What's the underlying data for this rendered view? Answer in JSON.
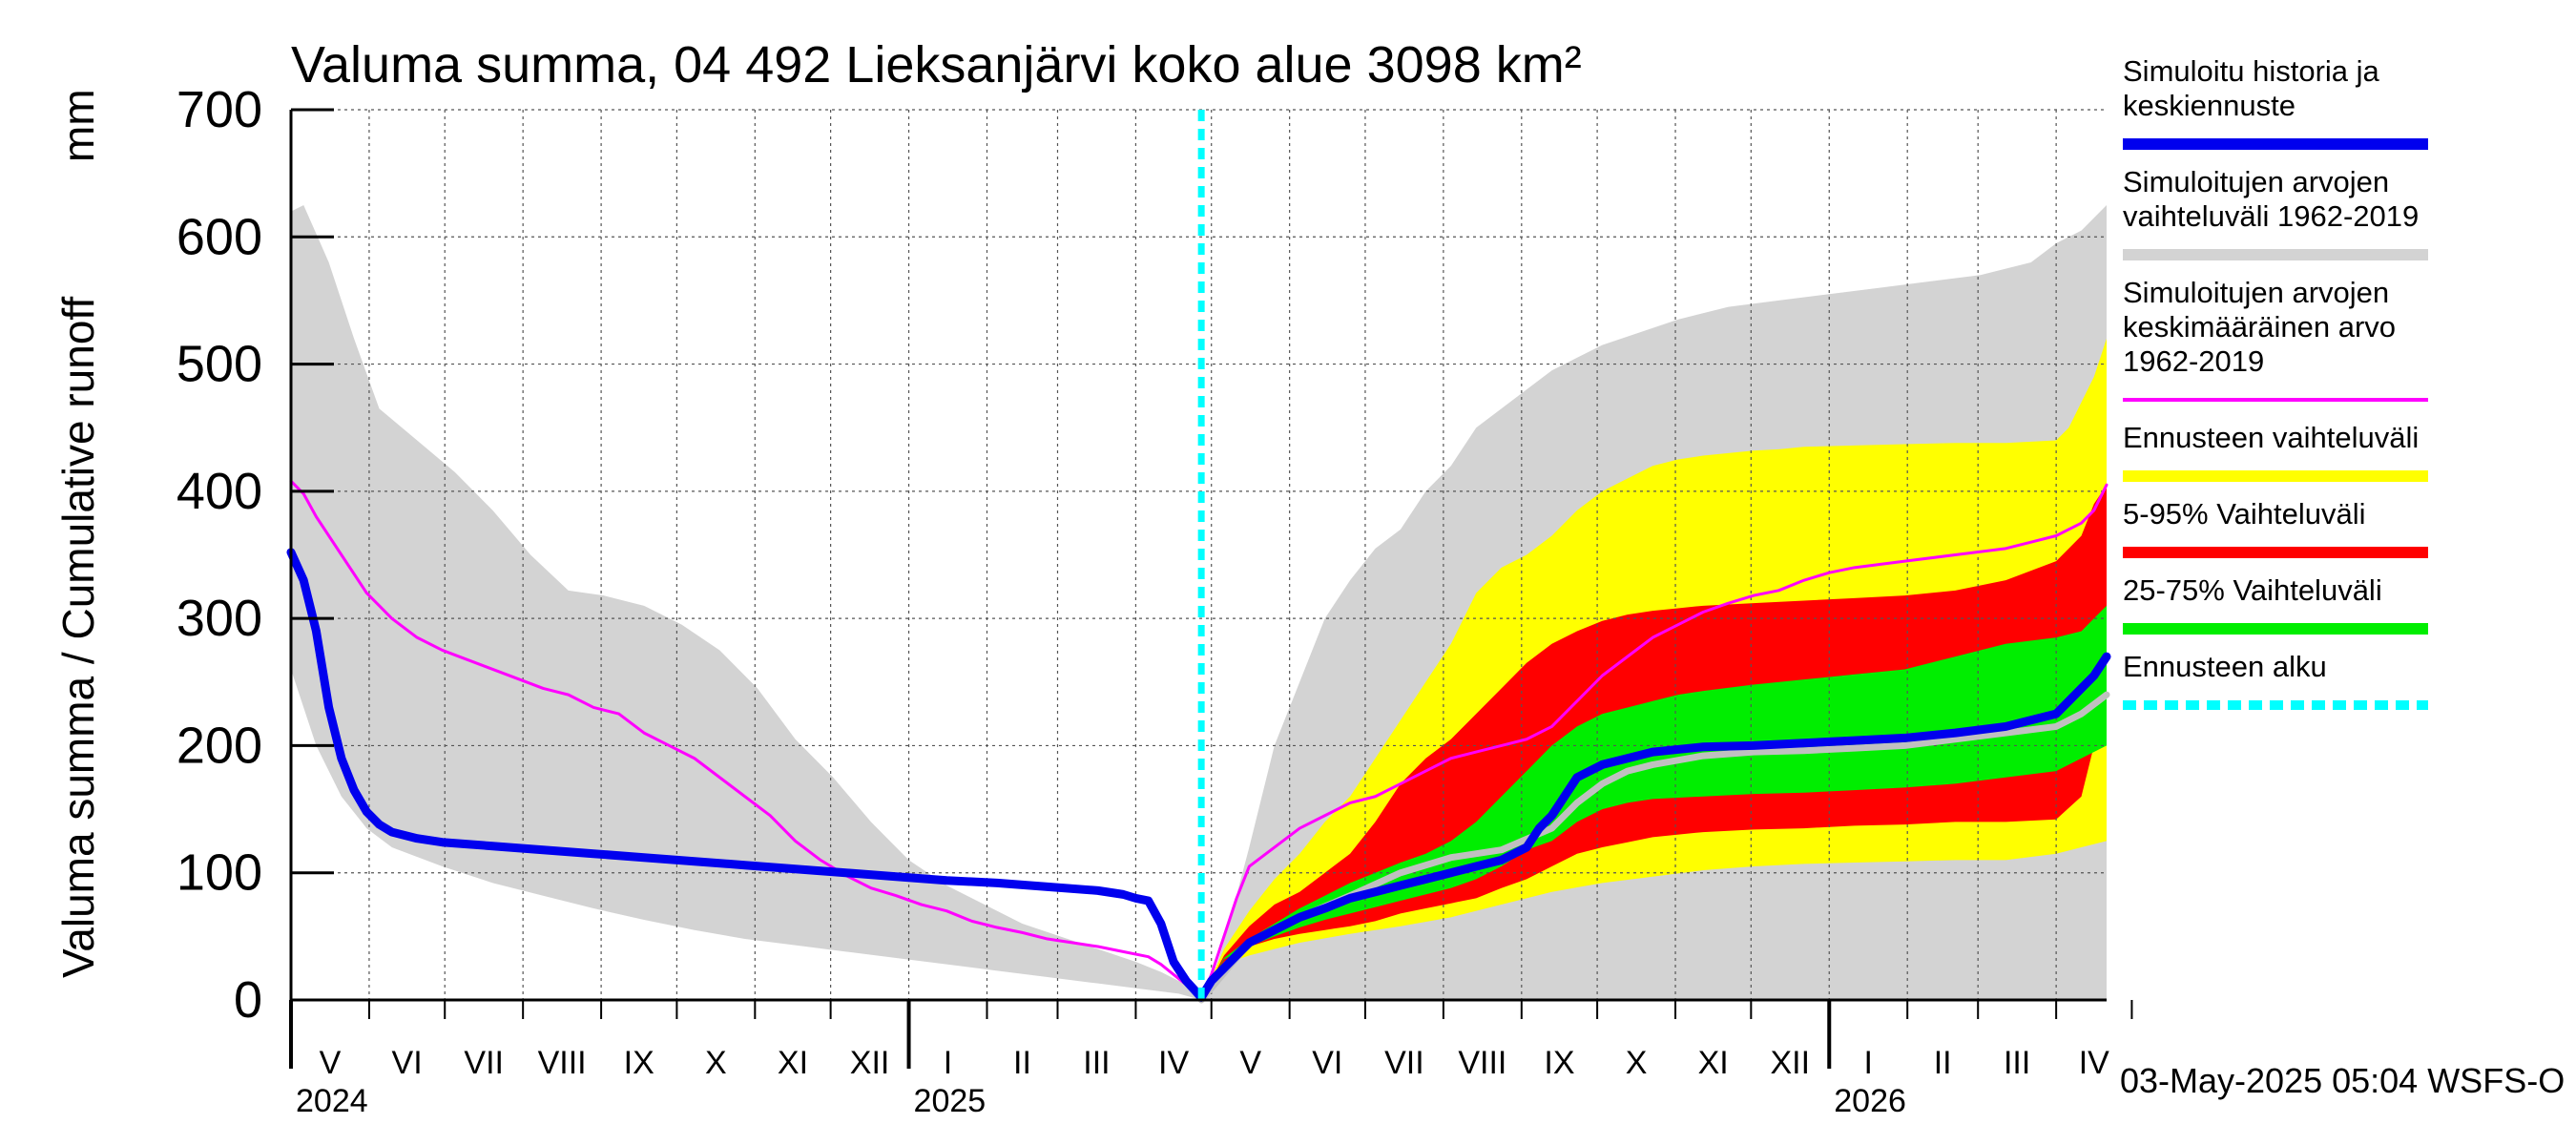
{
  "chart_data": {
    "type": "area",
    "title": "Valuma summa, 04 492 Lieksanjärvi koko alue 3098 km²",
    "ylabel_left": "Valuma summa / Cumulative runoff",
    "ylabel_unit": "mm",
    "ylim": [
      0,
      700
    ],
    "yticks": [
      "0",
      "100",
      "200",
      "300",
      "400",
      "500",
      "600",
      "700"
    ],
    "x_range_days": [
      0,
      720
    ],
    "months": [
      "V",
      "VI",
      "VII",
      "VIII",
      "IX",
      "X",
      "XI",
      "XII",
      "I",
      "II",
      "III",
      "IV",
      "V",
      "VI",
      "VII",
      "VIII",
      "IX",
      "X",
      "XI",
      "XII",
      "I",
      "II",
      "III",
      "IV"
    ],
    "month_lengths": [
      31,
      30,
      31,
      31,
      30,
      31,
      30,
      31,
      31,
      28,
      31,
      30,
      31,
      30,
      31,
      31,
      30,
      31,
      30,
      31,
      31,
      28,
      31,
      30
    ],
    "years": [
      {
        "label": "2024",
        "day": 0
      },
      {
        "label": "2025",
        "day": 245
      },
      {
        "label": "2026",
        "day": 610
      }
    ],
    "forecast_start_day": 361,
    "footer": "03-May-2025 05:04 WSFS-O",
    "colors": {
      "history": "#0000ee",
      "sim_range": "#d3d3d3",
      "sim_mean": "#ff00ff",
      "forecast_range": "#ffff00",
      "p5_95": "#ff0000",
      "p25_75": "#00ee00",
      "forecast_start": "#00ffff",
      "median_grey": "#c0c0c0"
    },
    "legend": [
      {
        "label": "Simuloitu historia ja keskiennuste",
        "lines": [
          "Simuloitu historia ja",
          "keskiennuste"
        ],
        "color": "#0000ee",
        "style": "solid"
      },
      {
        "label": "Simuloitujen arvojen vaihteluväli 1962-2019",
        "lines": [
          "Simuloitujen arvojen",
          "vaihteluväli 1962-2019"
        ],
        "color": "#d3d3d3",
        "style": "solid"
      },
      {
        "label": "Simuloitujen arvojen keskimääräinen arvo 1962-2019",
        "lines": [
          "Simuloitujen arvojen",
          "keskimääräinen arvo",
          "   1962-2019"
        ],
        "color": "#ff00ff",
        "style": "thin"
      },
      {
        "label": "Ennusteen vaihteluväli",
        "lines": [
          "Ennusteen vaihteluväli"
        ],
        "color": "#ffff00",
        "style": "solid"
      },
      {
        "label": "5-95% Vaihteluväli",
        "lines": [
          "5-95% Vaihteluväli"
        ],
        "color": "#ff0000",
        "style": "solid"
      },
      {
        "label": "25-75% Vaihteluväli",
        "lines": [
          "25-75% Vaihteluväli"
        ],
        "color": "#00ee00",
        "style": "solid"
      },
      {
        "label": "Ennusteen alku",
        "lines": [
          "Ennusteen alku"
        ],
        "color": "#00ffff",
        "style": "dashed"
      }
    ],
    "series": [
      {
        "name": "Simuloitujen arvojen vaihteluväli 1962-2019 (upper)",
        "x": [
          0,
          5,
          15,
          25,
          35,
          50,
          65,
          80,
          95,
          110,
          124,
          140,
          155,
          170,
          185,
          200,
          215,
          230,
          245,
          260,
          275,
          290,
          305,
          320,
          335,
          345,
          352,
          358,
          361,
          366,
          372,
          380,
          390,
          400,
          410,
          420,
          430,
          440,
          450,
          460,
          470,
          480,
          490,
          500,
          510,
          520,
          535,
          550,
          570,
          590,
          610,
          630,
          650,
          670,
          690,
          700,
          710,
          720
        ],
        "y": [
          620,
          625,
          580,
          520,
          465,
          440,
          415,
          385,
          350,
          322,
          318,
          310,
          295,
          275,
          245,
          205,
          175,
          140,
          110,
          90,
          75,
          60,
          50,
          40,
          30,
          22,
          15,
          8,
          2,
          20,
          60,
          120,
          200,
          250,
          300,
          330,
          355,
          370,
          400,
          420,
          450,
          465,
          480,
          495,
          505,
          515,
          525,
          535,
          545,
          550,
          555,
          560,
          565,
          570,
          580,
          595,
          605,
          625
        ]
      },
      {
        "name": "Simuloitujen arvojen vaihteluväli 1962-2019 (lower)",
        "x": [
          0,
          10,
          20,
          30,
          40,
          60,
          80,
          100,
          120,
          140,
          160,
          180,
          200,
          220,
          240,
          260,
          280,
          300,
          320,
          340,
          352,
          361,
          370,
          380,
          400,
          420,
          440,
          460,
          480,
          500,
          520,
          540,
          560,
          580,
          600,
          620,
          640,
          660,
          680,
          700,
          710,
          720
        ],
        "y": [
          260,
          200,
          160,
          135,
          120,
          105,
          92,
          82,
          72,
          63,
          55,
          48,
          43,
          38,
          33,
          28,
          23,
          18,
          13,
          8,
          5,
          0,
          0,
          0,
          0,
          0,
          0,
          0,
          0,
          0,
          0,
          0,
          0,
          0,
          0,
          0,
          0,
          0,
          0,
          0,
          0,
          0
        ]
      },
      {
        "name": "Ennusteen vaihteluväli (upper)",
        "x": [
          361,
          370,
          380,
          390,
          400,
          410,
          420,
          430,
          440,
          450,
          460,
          470,
          480,
          490,
          500,
          510,
          520,
          530,
          540,
          550,
          560,
          570,
          580,
          590,
          600,
          620,
          640,
          660,
          680,
          700,
          705,
          710,
          715,
          720
        ],
        "y": [
          0,
          40,
          70,
          95,
          115,
          140,
          160,
          190,
          220,
          250,
          280,
          320,
          340,
          350,
          365,
          385,
          400,
          410,
          420,
          425,
          428,
          430,
          432,
          433,
          435,
          436,
          437,
          438,
          438,
          440,
          450,
          470,
          490,
          520
        ]
      },
      {
        "name": "Ennusteen vaihteluväli (lower)",
        "x": [
          361,
          370,
          380,
          390,
          400,
          420,
          440,
          460,
          480,
          500,
          520,
          540,
          560,
          580,
          600,
          620,
          640,
          660,
          680,
          700,
          710,
          720
        ],
        "y": [
          0,
          28,
          35,
          40,
          45,
          52,
          58,
          65,
          75,
          85,
          92,
          97,
          102,
          105,
          107,
          108,
          109,
          110,
          110,
          115,
          120,
          125
        ]
      },
      {
        "name": "5-95% Vaihteluväli (upper)",
        "x": [
          361,
          370,
          380,
          390,
          400,
          410,
          420,
          430,
          440,
          450,
          460,
          470,
          480,
          490,
          500,
          510,
          520,
          530,
          540,
          550,
          560,
          580,
          600,
          620,
          640,
          660,
          680,
          700,
          705,
          710,
          715,
          720
        ],
        "y": [
          0,
          35,
          58,
          75,
          85,
          100,
          115,
          140,
          170,
          190,
          205,
          225,
          245,
          265,
          280,
          290,
          298,
          303,
          306,
          308,
          310,
          312,
          314,
          316,
          318,
          322,
          330,
          345,
          355,
          365,
          390,
          405
        ]
      },
      {
        "name": "5-95% Vaihteluväli (lower)",
        "x": [
          361,
          370,
          380,
          390,
          400,
          410,
          420,
          430,
          440,
          450,
          460,
          470,
          480,
          490,
          500,
          510,
          520,
          530,
          540,
          560,
          580,
          600,
          620,
          640,
          660,
          680,
          700,
          710,
          715,
          720
        ],
        "y": [
          0,
          30,
          42,
          48,
          52,
          55,
          58,
          62,
          68,
          72,
          76,
          80,
          88,
          95,
          105,
          115,
          120,
          124,
          128,
          132,
          134,
          135,
          137,
          138,
          140,
          140,
          142,
          160,
          200,
          215
        ]
      },
      {
        "name": "25-75% Vaihteluväli (upper)",
        "x": [
          361,
          370,
          380,
          390,
          400,
          410,
          420,
          430,
          440,
          450,
          460,
          470,
          480,
          490,
          500,
          510,
          520,
          530,
          540,
          550,
          560,
          580,
          600,
          620,
          640,
          660,
          680,
          700,
          710,
          715,
          720
        ],
        "y": [
          0,
          33,
          48,
          60,
          72,
          82,
          92,
          100,
          108,
          115,
          125,
          140,
          160,
          180,
          200,
          215,
          225,
          230,
          235,
          240,
          243,
          248,
          252,
          256,
          260,
          270,
          280,
          285,
          290,
          300,
          310
        ]
      },
      {
        "name": "25-75% Vaihteluväli (lower)",
        "x": [
          361,
          370,
          380,
          390,
          400,
          410,
          420,
          430,
          440,
          450,
          460,
          470,
          480,
          490,
          500,
          510,
          520,
          530,
          540,
          560,
          580,
          600,
          620,
          640,
          660,
          680,
          700,
          710,
          720
        ],
        "y": [
          0,
          32,
          42,
          50,
          57,
          63,
          68,
          73,
          78,
          83,
          88,
          95,
          105,
          118,
          125,
          140,
          150,
          155,
          158,
          160,
          162,
          163,
          165,
          167,
          170,
          175,
          180,
          190,
          200
        ]
      },
      {
        "name": "Simuloitujen arvojen keskimääräinen arvo 1962-2019",
        "x": [
          0,
          5,
          10,
          20,
          30,
          40,
          50,
          60,
          80,
          100,
          110,
          120,
          130,
          140,
          150,
          160,
          170,
          180,
          190,
          200,
          210,
          220,
          230,
          240,
          250,
          260,
          270,
          280,
          290,
          300,
          310,
          320,
          330,
          340,
          345,
          350,
          355,
          361,
          365,
          370,
          375,
          380,
          390,
          400,
          410,
          420,
          430,
          440,
          450,
          460,
          470,
          480,
          490,
          500,
          510,
          520,
          530,
          540,
          550,
          560,
          570,
          580,
          590,
          600,
          610,
          620,
          640,
          660,
          680,
          690,
          700,
          705,
          710,
          715,
          720
        ],
        "y": [
          408,
          398,
          380,
          350,
          320,
          300,
          285,
          275,
          260,
          245,
          240,
          230,
          225,
          210,
          200,
          190,
          175,
          160,
          145,
          125,
          110,
          98,
          88,
          82,
          75,
          70,
          62,
          57,
          53,
          48,
          45,
          42,
          38,
          34,
          28,
          20,
          12,
          2,
          20,
          50,
          80,
          105,
          120,
          135,
          145,
          155,
          160,
          170,
          180,
          190,
          195,
          200,
          205,
          215,
          235,
          255,
          270,
          285,
          295,
          305,
          312,
          318,
          322,
          330,
          336,
          340,
          345,
          350,
          355,
          360,
          365,
          370,
          375,
          385,
          405
        ]
      },
      {
        "name": "Simuloitu historia ja keskiennuste",
        "x": [
          0,
          5,
          10,
          15,
          20,
          25,
          30,
          35,
          40,
          50,
          60,
          80,
          100,
          120,
          140,
          160,
          180,
          200,
          220,
          240,
          260,
          280,
          300,
          320,
          330,
          335,
          340,
          345,
          350,
          355,
          361,
          365,
          370,
          375,
          380,
          390,
          400,
          410,
          420,
          430,
          440,
          450,
          460,
          470,
          480,
          490,
          495,
          500,
          505,
          510,
          520,
          530,
          540,
          550,
          560,
          580,
          600,
          620,
          640,
          660,
          680,
          690,
          700,
          705,
          710,
          715,
          720
        ],
        "y": [
          352,
          330,
          290,
          230,
          190,
          165,
          148,
          138,
          132,
          127,
          124,
          121,
          118,
          115,
          112,
          109,
          106,
          103,
          100,
          97,
          94,
          92,
          89,
          86,
          83,
          80,
          78,
          60,
          30,
          15,
          2,
          15,
          25,
          35,
          45,
          55,
          65,
          72,
          80,
          85,
          90,
          95,
          100,
          105,
          110,
          120,
          135,
          145,
          160,
          175,
          185,
          190,
          195,
          197,
          199,
          200,
          202,
          204,
          206,
          210,
          215,
          220,
          225,
          235,
          245,
          255,
          270
        ]
      },
      {
        "name": "Median (grey)",
        "x": [
          361,
          380,
          400,
          420,
          440,
          460,
          480,
          500,
          510,
          520,
          530,
          540,
          560,
          580,
          600,
          620,
          640,
          660,
          680,
          700,
          710,
          720
        ],
        "y": [
          0,
          45,
          65,
          82,
          100,
          112,
          118,
          135,
          155,
          170,
          180,
          185,
          192,
          195,
          196,
          198,
          200,
          205,
          210,
          215,
          225,
          240
        ]
      }
    ]
  }
}
